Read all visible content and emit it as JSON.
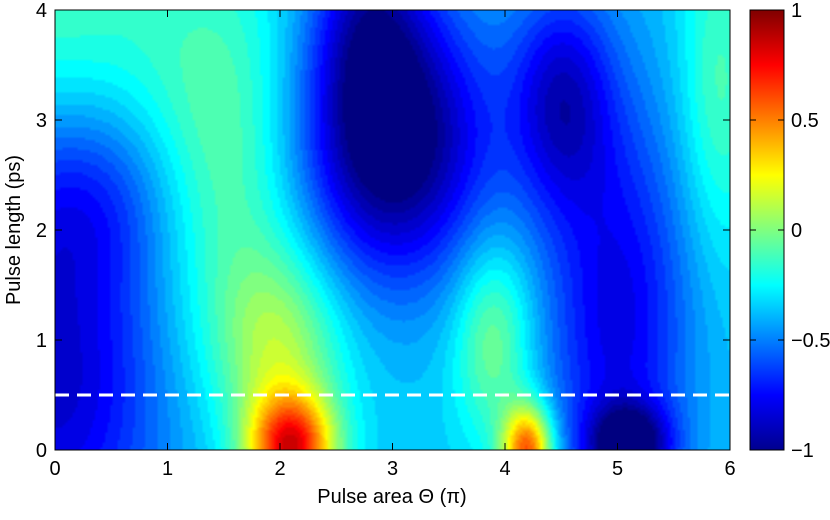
{
  "chart_data": {
    "type": "heatmap",
    "title": "",
    "xlabel": "Pulse area Θ (π)",
    "ylabel": "Pulse length (ps)",
    "xlim": [
      0,
      6
    ],
    "ylim": [
      0,
      4
    ],
    "x_ticks": [
      0,
      1,
      2,
      3,
      4,
      5,
      6
    ],
    "x_tick_labels": [
      "0",
      "1",
      "2",
      "3",
      "4",
      "5",
      "6"
    ],
    "y_ticks": [
      0,
      1,
      2,
      3,
      4
    ],
    "y_tick_labels": [
      "0",
      "1",
      "2",
      "3",
      "4"
    ],
    "colorbar": {
      "range": [
        -1,
        1
      ],
      "ticks": [
        -1,
        -0.5,
        0,
        0.5,
        1
      ],
      "tick_labels": [
        "−1",
        "−0.5",
        "0",
        "0.5",
        "1"
      ],
      "colormap": "jet",
      "levels": 40
    },
    "reference_line": {
      "axis": "y",
      "value": 0.5,
      "style": "dashed",
      "color": "#ffffff"
    },
    "features": [
      {
        "x": 2.1,
        "y": 0.0,
        "value": 0.95
      },
      {
        "x": 4.2,
        "y": 0.05,
        "value": 0.85
      },
      {
        "x": 5.1,
        "y": 0.1,
        "value": -0.95
      },
      {
        "x": 3.0,
        "y": 2.5,
        "value": -0.85
      },
      {
        "x": 0.5,
        "y": 0.5,
        "value": -0.75
      },
      {
        "x": 1.6,
        "y": 2.0,
        "value": -0.05
      },
      {
        "x": 4.0,
        "y": 1.5,
        "value": -0.4
      },
      {
        "x": 5.7,
        "y": 3.5,
        "value": -0.45
      }
    ]
  }
}
